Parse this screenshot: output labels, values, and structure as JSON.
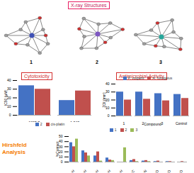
{
  "header": {
    "title": "X-ray Structures",
    "compounds": [
      "1",
      "2",
      "3"
    ]
  },
  "chart_data": [
    {
      "type": "bar",
      "title": "Cytotoxicity",
      "ylabel": "IC50 (µM)",
      "categories": [
        "MCF-7",
        "A-549"
      ],
      "series": [
        {
          "name": "2",
          "color": "#4472c4",
          "values": [
            34,
            17
          ]
        },
        {
          "name": "cis-platin",
          "color": "#c0504d",
          "values": [
            30,
            28
          ]
        }
      ],
      "ylim": [
        0,
        40
      ],
      "yticks": [
        0,
        10,
        20,
        30,
        40
      ],
      "legend": "bottom"
    },
    {
      "type": "bar",
      "title": "Antimicrobial Activity",
      "xlabel": "Compound",
      "ylabel": "ZOI (mm)",
      "categories": [
        "1",
        "2",
        "3",
        "Control"
      ],
      "series": [
        {
          "name": "P. vulgaris",
          "color": "#4472c4",
          "values": [
            30,
            30,
            28,
            27
          ]
        },
        {
          "name": "A. fumigatus",
          "color": "#c0504d",
          "values": [
            20,
            21,
            19,
            22
          ]
        }
      ],
      "ylim": [
        0,
        40
      ],
      "yticks": [
        0,
        10,
        20,
        30,
        40
      ],
      "legend": "top"
    },
    {
      "type": "bar",
      "title": "Hirshfeld Analysis",
      "ylabel": "%Contact",
      "categories": [
        "H···H",
        "C···H",
        "O···H",
        "N···H",
        "Cl···H",
        "C···C",
        "C···N",
        "C···O",
        "O···O",
        "N···O"
      ],
      "series": [
        {
          "name": "1",
          "color": "#4472c4",
          "values": [
            38,
            22,
            12,
            8,
            0,
            3,
            2,
            1,
            1,
            0
          ]
        },
        {
          "name": "2",
          "color": "#c0504d",
          "values": [
            30,
            18,
            20,
            4,
            0,
            5,
            3,
            2,
            1,
            1
          ]
        },
        {
          "name": "3",
          "color": "#9bbb59",
          "values": [
            45,
            12,
            2,
            3,
            28,
            1,
            1,
            0,
            0,
            0
          ]
        }
      ],
      "ylim": [
        0,
        50
      ],
      "yticks": [
        0,
        10,
        20,
        30,
        40,
        50
      ],
      "legend": "top"
    }
  ]
}
